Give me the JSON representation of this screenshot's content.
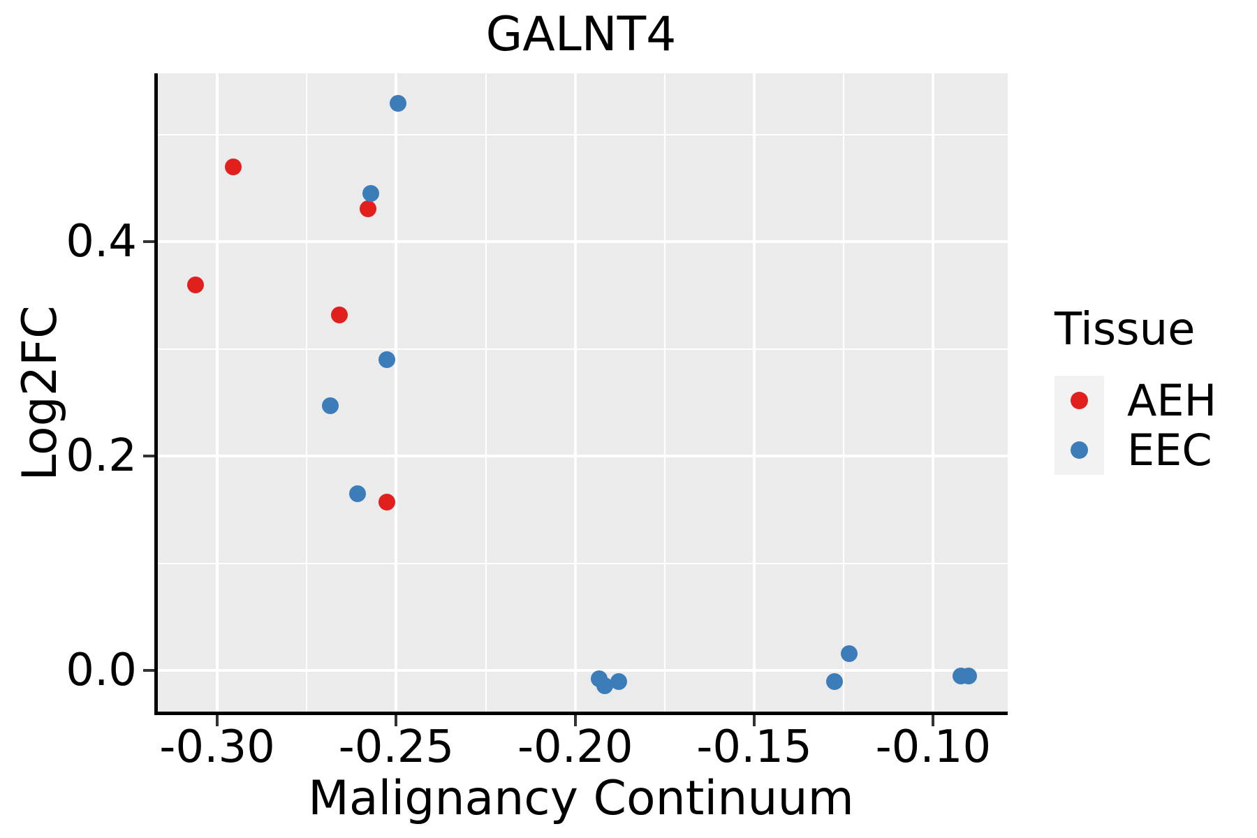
{
  "title": "GALNT4",
  "legend": {
    "title": "Tissue",
    "position": "right"
  },
  "colors": {
    "panel_background": "#ebebeb",
    "grid": "#ffffff",
    "axis_line": "#000000",
    "tick": "#333333",
    "text": "#000000",
    "legend_key_background": "#f2f2f2",
    "aeh": "#e1201e",
    "eec": "#3c7cb8"
  },
  "chart_data": {
    "type": "scatter",
    "title": "GALNT4",
    "xlabel": "Malignancy Continuum",
    "ylabel": "Log2FC",
    "xlim": [
      -0.3166,
      -0.0792
    ],
    "ylim": [
      -0.0383,
      0.5571
    ],
    "x_major_ticks": [
      -0.3,
      -0.25,
      -0.2,
      -0.15,
      -0.1
    ],
    "x_tick_labels": [
      "-0.30",
      "-0.25",
      "-0.20",
      "-0.15",
      "-0.10"
    ],
    "x_minor_ticks": [
      -0.275,
      -0.225,
      -0.175,
      -0.125
    ],
    "y_major_ticks": [
      0.0,
      0.2,
      0.4
    ],
    "y_tick_labels": [
      "0.0",
      "0.2",
      "0.4"
    ],
    "y_minor_ticks": [
      0.1,
      0.3,
      0.5
    ],
    "grid": true,
    "legend_position": "right",
    "series": [
      {
        "name": "AEH",
        "color": "#e1201e",
        "points": [
          [
            -0.306,
            0.36
          ],
          [
            -0.2955,
            0.47
          ],
          [
            -0.2659,
            0.332
          ],
          [
            -0.2579,
            0.431
          ],
          [
            -0.2527,
            0.157
          ]
        ]
      },
      {
        "name": "EEC",
        "color": "#3c7cb8",
        "points": [
          [
            -0.2494,
            0.529
          ],
          [
            -0.2572,
            0.445
          ],
          [
            -0.2527,
            0.29
          ],
          [
            -0.2684,
            0.247
          ],
          [
            -0.2608,
            0.165
          ],
          [
            -0.1934,
            -0.008
          ],
          [
            -0.1918,
            -0.014
          ],
          [
            -0.1879,
            -0.01
          ],
          [
            -0.1276,
            -0.01
          ],
          [
            -0.1235,
            0.016
          ],
          [
            -0.0922,
            -0.005
          ],
          [
            -0.0901,
            -0.005
          ]
        ]
      }
    ]
  }
}
